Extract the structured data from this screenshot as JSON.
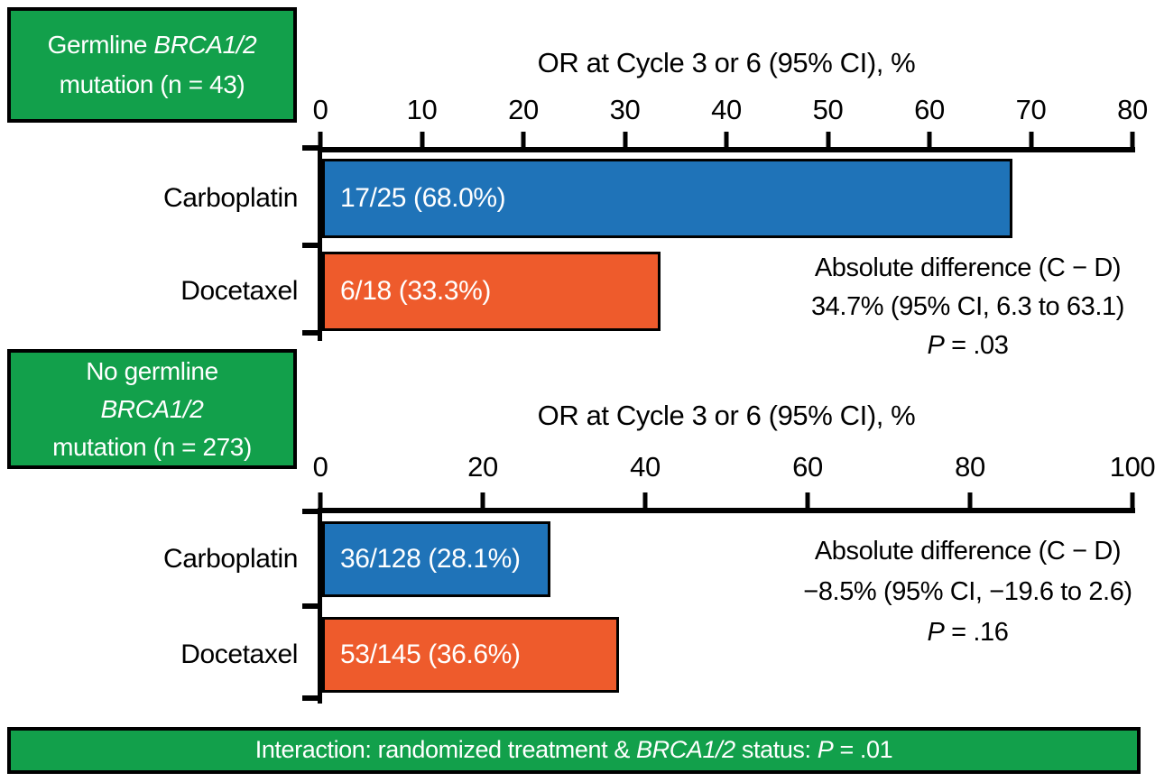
{
  "colors": {
    "green": "#12A04B",
    "blue": "#1F73B8",
    "orange": "#EE5B2C",
    "axis_black": "#000000",
    "text_on_fill": "#FFFFFF"
  },
  "chart_data": [
    {
      "type": "bar",
      "orientation": "horizontal",
      "group_label": {
        "line1_pre": "Germline ",
        "gene": "BRCA1/2",
        "line2": "mutation (n = 43)"
      },
      "title": "OR at Cycle 3 or 6 (95% CI), %",
      "categories": [
        "Carboplatin",
        "Docetaxel"
      ],
      "values": [
        68.0,
        33.3
      ],
      "bar_labels": [
        "17/25 (68.0%)",
        "6/18 (33.3%)"
      ],
      "series_colors": [
        "#1F73B8",
        "#EE5B2C"
      ],
      "xlim": [
        0,
        80
      ],
      "xticks": [
        0,
        10,
        20,
        30,
        40,
        50,
        60,
        70,
        80
      ],
      "grid": "off",
      "annotation": {
        "line1": "Absolute difference (C − D)",
        "line2": "34.7% (95% CI, 6.3 to 63.1)",
        "p_italic": "P",
        "p_rest": " = .03"
      }
    },
    {
      "type": "bar",
      "orientation": "horizontal",
      "group_label": {
        "line1": "No germline",
        "gene": "BRCA1/2",
        "line3": "mutation (n = 273)"
      },
      "title": "OR at Cycle 3 or 6 (95% CI), %",
      "categories": [
        "Carboplatin",
        "Docetaxel"
      ],
      "values": [
        28.1,
        36.6
      ],
      "bar_labels": [
        "36/128 (28.1%)",
        "53/145 (36.6%)"
      ],
      "series_colors": [
        "#1F73B8",
        "#EE5B2C"
      ],
      "xlim": [
        0,
        100
      ],
      "xticks": [
        0,
        20,
        40,
        60,
        80,
        100
      ],
      "grid": "off",
      "annotation": {
        "line1": "Absolute difference (C − D)",
        "line2": "−8.5% (95% CI, −19.6 to 2.6)",
        "p_italic": "P",
        "p_rest": " = .16"
      }
    }
  ],
  "footer": {
    "pre": "Interaction: randomized treatment & ",
    "gene": "BRCA1/2",
    "mid": " status: ",
    "p_italic": "P",
    "p_rest": " = .01"
  }
}
